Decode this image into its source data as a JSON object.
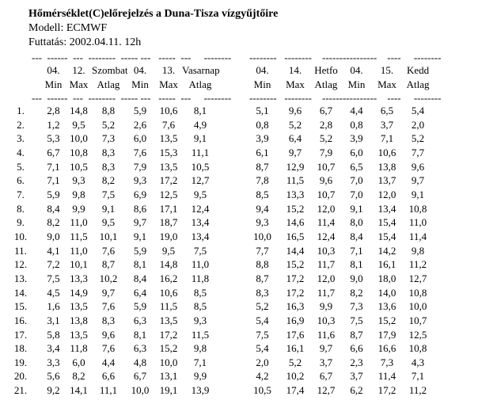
{
  "page": {
    "title": "Hőmérséklet(C)előrejelzés a Duna-Tisza vízgyűjtőire",
    "model_line": "Modell: ECMWF",
    "run_line": "Futtatás: 2002.04.11. 12h"
  },
  "separator": "---  ------  ---  --------  ----- ---   -----  ---     --------       --------   --------    ----------------    ----     --------",
  "table": {
    "header_days": [
      "",
      "04.",
      "12.",
      "Szombat",
      "04.",
      "13.",
      "Vasarnap",
      "04.",
      "14.",
      "Hetfo",
      "04.",
      "15.",
      "Kedd"
    ],
    "header_stats": [
      "",
      "Min",
      "Max",
      "Atlag",
      "Min",
      "Max",
      "Atlag",
      "Min",
      "Max",
      "Atlag",
      "Min",
      "Max",
      "Atlag"
    ],
    "rows": [
      [
        "1.",
        "2,8",
        "14,8",
        "8,8",
        "5,9",
        "10,6",
        "8,1",
        "5,1",
        "9,6",
        "6,7",
        "4,4",
        "6,5",
        "5,4"
      ],
      [
        "2.",
        "1,2",
        "9,5",
        "5,2",
        "2,6",
        "7,6",
        "4,9",
        "0,8",
        "5,2",
        "2,8",
        "0,8",
        "3,7",
        "2,0"
      ],
      [
        "3.",
        "5,3",
        "10,0",
        "7,3",
        "6,0",
        "13,5",
        "9,1",
        "3,9",
        "6,4",
        "5,2",
        "3,9",
        "7,1",
        "5,2"
      ],
      [
        "4.",
        "6,7",
        "10,8",
        "8,3",
        "7,6",
        "15,3",
        "11,1",
        "6,1",
        "9,7",
        "7,9",
        "6,0",
        "10,6",
        "7,7"
      ],
      [
        "5.",
        "7,1",
        "10,5",
        "8,3",
        "7,9",
        "13,5",
        "10,5",
        "8,7",
        "12,9",
        "10,7",
        "6,5",
        "13,8",
        "9,6"
      ],
      [
        "6.",
        "7,1",
        "9,3",
        "8,2",
        "9,3",
        "17,2",
        "12,7",
        "7,8",
        "11,5",
        "9,6",
        "7,0",
        "13,7",
        "9,7"
      ],
      [
        "7.",
        "5,9",
        "9,8",
        "7,5",
        "6,9",
        "12,5",
        "9,5",
        "8,5",
        "13,3",
        "10,7",
        "7,0",
        "12,0",
        "9,1"
      ],
      [
        "8.",
        "8,4",
        "9,9",
        "9,1",
        "8,6",
        "17,1",
        "12,4",
        "9,4",
        "15,2",
        "12,0",
        "9,1",
        "13,4",
        "10,8"
      ],
      [
        "9.",
        "8,2",
        "11,0",
        "9,5",
        "9,7",
        "18,7",
        "13,4",
        "9,3",
        "14,6",
        "11,4",
        "8,0",
        "15,4",
        "11,0"
      ],
      [
        "10.",
        "9,0",
        "11,5",
        "10,1",
        "9,1",
        "19,0",
        "13,4",
        "10,0",
        "16,5",
        "12,4",
        "8,4",
        "15,4",
        "11,4"
      ],
      [
        "11.",
        "4,1",
        "11,0",
        "7,6",
        "5,9",
        "9,5",
        "7,5",
        "7,7",
        "14,4",
        "10,3",
        "7,1",
        "14,2",
        "9,8"
      ],
      [
        "12.",
        "7,2",
        "10,1",
        "8,7",
        "8,1",
        "14,8",
        "11,0",
        "8,8",
        "15,2",
        "11,7",
        "8,1",
        "16,1",
        "11,2"
      ],
      [
        "13.",
        "7,5",
        "13,3",
        "10,2",
        "8,4",
        "16,2",
        "11,8",
        "8,7",
        "17,2",
        "12,0",
        "9,0",
        "18,0",
        "12,7"
      ],
      [
        "14.",
        "4,5",
        "14,9",
        "9,7",
        "6,4",
        "10,6",
        "8,5",
        "8,3",
        "17,2",
        "11,7",
        "8,2",
        "14,0",
        "10,8"
      ],
      [
        "15.",
        "1,6",
        "13,5",
        "7,6",
        "5,9",
        "11,5",
        "8,5",
        "5,2",
        "16,3",
        "9,9",
        "7,3",
        "13,6",
        "10,0"
      ],
      [
        "16.",
        "3,1",
        "13,8",
        "8,3",
        "6,3",
        "13,5",
        "9,3",
        "5,4",
        "16,9",
        "10,3",
        "7,5",
        "15,2",
        "10,7"
      ],
      [
        "17.",
        "5,8",
        "13,5",
        "9,6",
        "8,1",
        "17,2",
        "11,5",
        "7,5",
        "17,6",
        "11,6",
        "8,7",
        "17,9",
        "12,5"
      ],
      [
        "18.",
        "3,4",
        "11,8",
        "7,6",
        "6,3",
        "15,2",
        "9,8",
        "5,4",
        "16,1",
        "9,7",
        "6,6",
        "16,6",
        "10,8"
      ],
      [
        "19.",
        "3,3",
        "6,0",
        "4,4",
        "4,8",
        "10,0",
        "7,1",
        "2,0",
        "5,2",
        "3,7",
        "2,3",
        "7,3",
        "4,3"
      ],
      [
        "20.",
        "5,6",
        "8,2",
        "6,6",
        "6,7",
        "13,1",
        "9,9",
        "4,2",
        "10,2",
        "6,7",
        "3,7",
        "11,4",
        "7,1"
      ],
      [
        "21.",
        "9,2",
        "14,1",
        "11,1",
        "10,0",
        "19,1",
        "13,9",
        "10,5",
        "17,4",
        "12,7",
        "6,2",
        "17,2",
        "11,2"
      ]
    ]
  }
}
